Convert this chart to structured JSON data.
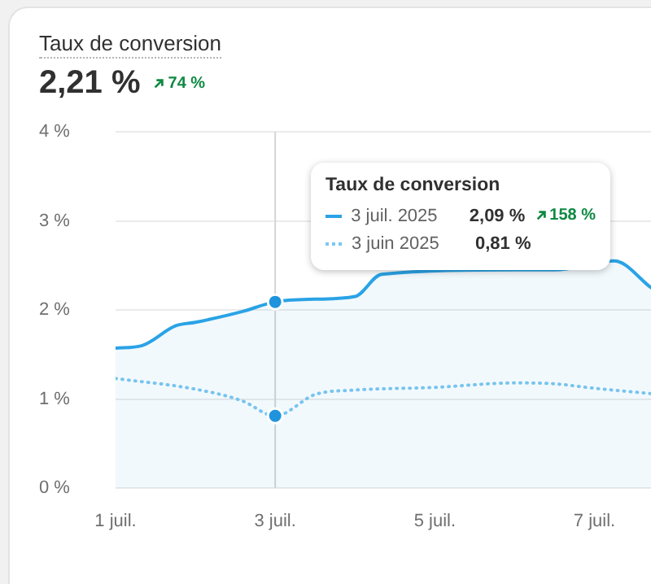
{
  "chart_data": {
    "type": "line",
    "title": "Taux de conversion",
    "subtitle": "2,21 %",
    "legend_title": "Taux de conversion",
    "annotations": [
      "74 %",
      "2,09 %",
      "0,81 %",
      "158 %"
    ],
    "xlim": [
      "2025-07-01",
      "2025-07-07T17:00"
    ],
    "xticks": [
      {
        "value": "2025-07-01",
        "label": "1 juil."
      },
      {
        "value": "2025-07-03",
        "label": "3 juil."
      },
      {
        "value": "2025-07-05",
        "label": "5 juil."
      },
      {
        "value": "2025-07-07",
        "label": "7 juil."
      }
    ],
    "ylim": [
      0,
      4
    ],
    "yticks": [
      {
        "value": 0,
        "label": "0 %"
      },
      {
        "value": 1,
        "label": "1 %"
      },
      {
        "value": 2,
        "label": "2 %"
      },
      {
        "value": 3,
        "label": "3 %"
      },
      {
        "value": 4,
        "label": "4 %"
      }
    ],
    "grid": "y",
    "legend": "top",
    "marker": "none",
    "ref_lines": [
      {
        "axis": "x",
        "value": "2025-07-03",
        "color": "#d4d4d4"
      }
    ],
    "series": [
      {
        "name": "3 juil. 2025",
        "type": "area",
        "color": "#2aa3e6",
        "x": [
          "2025-07-01",
          "2025-07-01T08:00",
          "2025-07-01T18:00",
          "2025-07-02",
          "2025-07-02T14:00",
          "2025-07-03",
          "2025-07-03T12:00",
          "2025-07-04",
          "2025-07-04T08:00",
          "2025-07-06",
          "2025-07-06T12:00",
          "2025-07-07T06:00",
          "2025-07-07T17:00"
        ],
        "values": [
          1.57,
          1.6,
          1.82,
          1.86,
          1.98,
          2.09,
          2.12,
          2.15,
          2.4,
          2.45,
          2.45,
          2.55,
          2.25
        ]
      },
      {
        "name": "3 juin 2025",
        "type": "line",
        "line_style": "dotted",
        "color": "#7cc7f0",
        "x": [
          "2025-07-01",
          "2025-07-02",
          "2025-07-02T14:00",
          "2025-07-03",
          "2025-07-03T12:00",
          "2025-07-04",
          "2025-07-05",
          "2025-07-06",
          "2025-07-06T12:00",
          "2025-07-07",
          "2025-07-07T17:00"
        ],
        "values": [
          1.23,
          1.11,
          0.98,
          0.81,
          1.05,
          1.1,
          1.13,
          1.18,
          1.17,
          1.12,
          1.06
        ]
      }
    ]
  }
}
